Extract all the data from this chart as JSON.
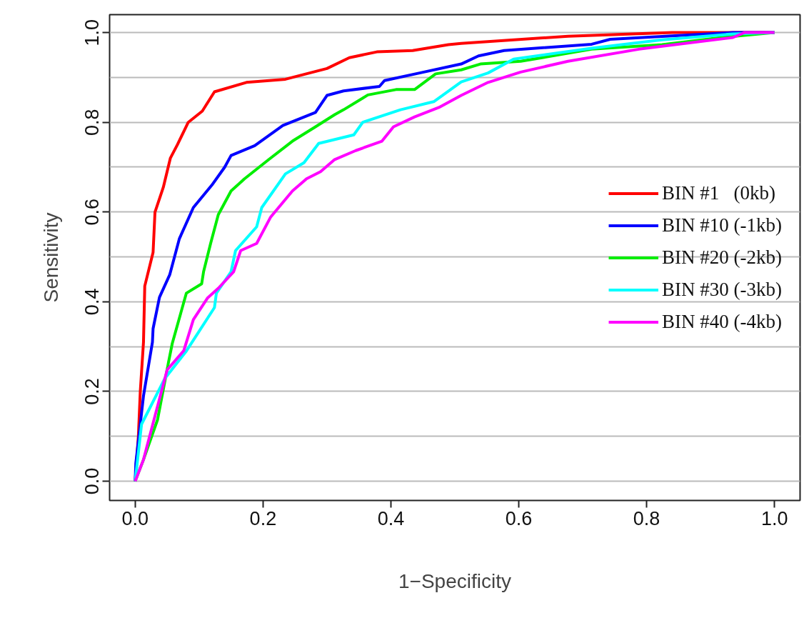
{
  "chart_data": {
    "type": "line",
    "xlabel": "1−Specificity",
    "ylabel": "Sensitivity",
    "xlim": [
      -0.04,
      1.04
    ],
    "ylim": [
      -0.043,
      1.04
    ],
    "xticks": [
      {
        "value": 0,
        "label": "0.0"
      },
      0.2,
      0.4,
      0.6,
      0.8,
      {
        "value": 1,
        "label": "1.0"
      }
    ],
    "yticks": [
      {
        "value": 0,
        "label": "0.0"
      },
      {
        "value": 0.1,
        "label": null
      },
      0.2,
      {
        "value": 0.3,
        "label": null
      },
      0.4,
      {
        "value": 0.5,
        "label": null
      },
      0.6,
      {
        "value": 0.7,
        "label": null
      },
      0.8,
      {
        "value": 0.9,
        "label": null
      },
      {
        "value": 1,
        "label": "1.0"
      }
    ],
    "grid": "y",
    "legend": "right",
    "marker": "none",
    "line_style": "solid",
    "series": [
      {
        "name": "BIN #1   (0kb)",
        "color": "#ff0000",
        "x": [
          0,
          0.005,
          0.008,
          0.013,
          0.015,
          0.028,
          0.031,
          0.044,
          0.055,
          0.066,
          0.083,
          0.105,
          0.124,
          0.174,
          0.235,
          0.3,
          0.335,
          0.378,
          0.434,
          0.49,
          0.51,
          0.677,
          0.84,
          1
        ],
        "values": [
          0,
          0.1,
          0.2,
          0.31,
          0.435,
          0.51,
          0.6,
          0.655,
          0.72,
          0.75,
          0.8,
          0.825,
          0.868,
          0.889,
          0.896,
          0.92,
          0.944,
          0.957,
          0.96,
          0.973,
          0.976,
          0.992,
          1,
          1
        ]
      },
      {
        "name": "BIN #10 (-1kb)",
        "color": "#0000ff",
        "x": [
          0,
          0.001,
          0.013,
          0.027,
          0.028,
          0.038,
          0.054,
          0.069,
          0.091,
          0.12,
          0.14,
          0.15,
          0.187,
          0.231,
          0.282,
          0.3,
          0.326,
          0.382,
          0.39,
          0.445,
          0.51,
          0.537,
          0.577,
          0.714,
          0.743,
          0.935,
          1
        ],
        "values": [
          0,
          0.04,
          0.19,
          0.31,
          0.34,
          0.41,
          0.46,
          0.54,
          0.61,
          0.66,
          0.7,
          0.726,
          0.748,
          0.793,
          0.822,
          0.86,
          0.87,
          0.88,
          0.893,
          0.91,
          0.93,
          0.948,
          0.96,
          0.974,
          0.985,
          1,
          1
        ]
      },
      {
        "name": "BIN #20 (-2kb)",
        "color": "#00ee00",
        "x": [
          0,
          0.013,
          0.035,
          0.052,
          0.058,
          0.08,
          0.104,
          0.107,
          0.118,
          0.13,
          0.15,
          0.171,
          0.209,
          0.246,
          0.282,
          0.312,
          0.326,
          0.364,
          0.408,
          0.437,
          0.47,
          0.51,
          0.54,
          0.603,
          0.714,
          0.824,
          0.917,
          1
        ],
        "values": [
          0,
          0.048,
          0.137,
          0.264,
          0.307,
          0.419,
          0.44,
          0.467,
          0.53,
          0.594,
          0.647,
          0.674,
          0.717,
          0.758,
          0.79,
          0.817,
          0.828,
          0.861,
          0.873,
          0.873,
          0.908,
          0.917,
          0.93,
          0.936,
          0.963,
          0.973,
          0.989,
          1
        ]
      },
      {
        "name": "BIN #30 (-3kb)",
        "color": "#00ffff",
        "x": [
          0,
          0.01,
          0.046,
          0.08,
          0.124,
          0.127,
          0.15,
          0.157,
          0.19,
          0.198,
          0.235,
          0.264,
          0.287,
          0.342,
          0.356,
          0.415,
          0.467,
          0.51,
          0.552,
          0.592,
          0.714,
          0.824,
          0.935,
          1
        ],
        "values": [
          0,
          0.127,
          0.228,
          0.29,
          0.387,
          0.419,
          0.467,
          0.514,
          0.567,
          0.61,
          0.685,
          0.71,
          0.753,
          0.772,
          0.8,
          0.828,
          0.846,
          0.89,
          0.91,
          0.941,
          0.965,
          0.984,
          0.997,
          1
        ]
      },
      {
        "name": "BIN #40 (-4kb)",
        "color": "#ff00ff",
        "x": [
          0,
          0.013,
          0.05,
          0.076,
          0.091,
          0.113,
          0.13,
          0.154,
          0.165,
          0.19,
          0.212,
          0.246,
          0.268,
          0.29,
          0.312,
          0.345,
          0.386,
          0.404,
          0.437,
          0.475,
          0.51,
          0.552,
          0.603,
          0.677,
          0.788,
          0.935,
          0.953,
          1
        ],
        "values": [
          0,
          0.048,
          0.248,
          0.291,
          0.36,
          0.408,
          0.43,
          0.467,
          0.514,
          0.53,
          0.589,
          0.647,
          0.674,
          0.69,
          0.717,
          0.737,
          0.758,
          0.79,
          0.812,
          0.833,
          0.86,
          0.889,
          0.912,
          0.936,
          0.963,
          0.989,
          1,
          1
        ]
      }
    ]
  }
}
